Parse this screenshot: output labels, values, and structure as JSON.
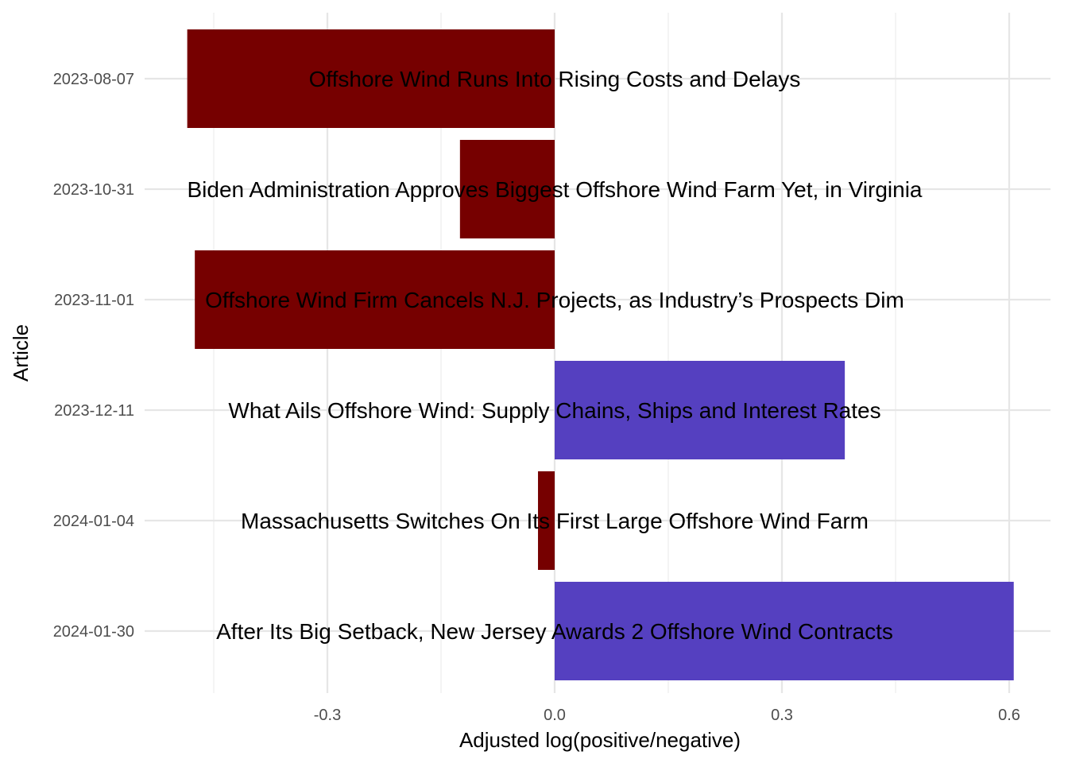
{
  "chart_data": {
    "type": "bar",
    "orientation": "horizontal",
    "title": "",
    "xlabel": "Adjusted log(positive/negative)",
    "ylabel": "Article",
    "xlim": [
      -0.45,
      0.62
    ],
    "xticks": [
      -0.3,
      0.0,
      0.3,
      0.6
    ],
    "xtick_labels": [
      "-0.3",
      "0.0",
      "0.3",
      "0.6"
    ],
    "grid": true,
    "legend": "none",
    "categories": [
      "2023-08-07",
      "2023-10-31",
      "2023-11-01",
      "2023-12-11",
      "2024-01-04",
      "2024-01-30"
    ],
    "titles": [
      "Offshore Wind Runs Into Rising Costs and Delays",
      "Biden Administration Approves Biggest Offshore Wind Farm Yet, in Virginia",
      "Offshore Wind Firm Cancels N.J. Projects, as Industry’s Prospects Dim",
      "What Ails Offshore Wind: Supply Chains, Ships and Interest Rates",
      "Massachusetts Switches On Its First Large Offshore Wind Farm",
      "After Its Big Setback, New Jersey Awards 2 Offshore Wind Contracts"
    ],
    "values": [
      -0.485,
      -0.125,
      -0.475,
      0.383,
      -0.022,
      0.606
    ],
    "colors": {
      "negative": "#760000",
      "positive": "#5540C0",
      "grid_major": "#e6e6e6",
      "grid_minor": "#f1f1f1"
    }
  }
}
